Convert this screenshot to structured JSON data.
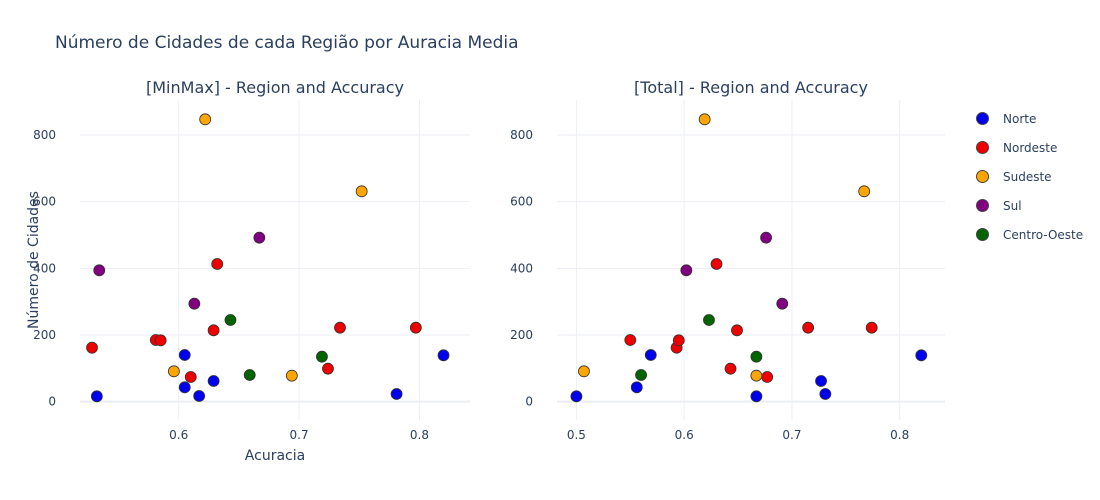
{
  "title": "Número de Cidades de cada Região por Auracia Media",
  "colors": {
    "Norte": "#0000ee",
    "Nordeste": "#ee0000",
    "Sudeste": "#ffa500",
    "Sul": "#800080",
    "Centro-Oeste": "#006400"
  },
  "legend": [
    "Norte",
    "Nordeste",
    "Sudeste",
    "Sul",
    "Centro-Oeste"
  ],
  "chart_data": [
    {
      "type": "scatter",
      "title": "[MinMax] - Region and Accuracy",
      "xlabel": "Acuracia",
      "ylabel": "Número de Cidades",
      "xticks": [
        0.6,
        0.7,
        0.8
      ],
      "yticks": [
        0,
        200,
        400,
        600,
        800
      ],
      "grid": true,
      "series": [
        {
          "name": "Norte",
          "points": [
            [
              0.532,
              16
            ],
            [
              0.605,
              140
            ],
            [
              0.605,
              43
            ],
            [
              0.617,
              17
            ],
            [
              0.629,
              62
            ],
            [
              0.781,
              23
            ],
            [
              0.82,
              139
            ]
          ]
        },
        {
          "name": "Nordeste",
          "points": [
            [
              0.528,
              162
            ],
            [
              0.581,
              185
            ],
            [
              0.585,
              184
            ],
            [
              0.61,
              74
            ],
            [
              0.629,
              214
            ],
            [
              0.632,
              413
            ],
            [
              0.724,
              99
            ],
            [
              0.734,
              222
            ],
            [
              0.797,
              222
            ]
          ]
        },
        {
          "name": "Sudeste",
          "points": [
            [
              0.596,
              91
            ],
            [
              0.622,
              847
            ],
            [
              0.694,
              78
            ],
            [
              0.752,
              631
            ]
          ]
        },
        {
          "name": "Sul",
          "points": [
            [
              0.534,
              394
            ],
            [
              0.613,
              294
            ],
            [
              0.667,
              492
            ]
          ]
        },
        {
          "name": "Centro-Oeste",
          "points": [
            [
              0.643,
              245
            ],
            [
              0.659,
              80
            ],
            [
              0.719,
              135
            ]
          ]
        }
      ]
    },
    {
      "type": "scatter",
      "title": "[Total] - Region and Accuracy",
      "xlabel": "",
      "ylabel": "",
      "xticks": [
        0.5,
        0.6,
        0.7,
        0.8
      ],
      "yticks": [
        0,
        200,
        400,
        600,
        800
      ],
      "grid": true,
      "series": [
        {
          "name": "Norte",
          "points": [
            [
              0.5,
              16
            ],
            [
              0.556,
              43
            ],
            [
              0.569,
              140
            ],
            [
              0.667,
              16
            ],
            [
              0.727,
              62
            ],
            [
              0.731,
              23
            ],
            [
              0.82,
              139
            ]
          ]
        },
        {
          "name": "Nordeste",
          "points": [
            [
              0.55,
              185
            ],
            [
              0.593,
              162
            ],
            [
              0.595,
              184
            ],
            [
              0.643,
              99
            ],
            [
              0.63,
              413
            ],
            [
              0.649,
              214
            ],
            [
              0.677,
              74
            ],
            [
              0.715,
              222
            ],
            [
              0.774,
              222
            ]
          ]
        },
        {
          "name": "Sudeste",
          "points": [
            [
              0.507,
              91
            ],
            [
              0.619,
              847
            ],
            [
              0.667,
              78
            ],
            [
              0.767,
              631
            ]
          ]
        },
        {
          "name": "Sul",
          "points": [
            [
              0.602,
              394
            ],
            [
              0.676,
              492
            ],
            [
              0.691,
              294
            ]
          ]
        },
        {
          "name": "Centro-Oeste",
          "points": [
            [
              0.56,
              80
            ],
            [
              0.623,
              245
            ],
            [
              0.667,
              135
            ]
          ]
        }
      ]
    }
  ]
}
